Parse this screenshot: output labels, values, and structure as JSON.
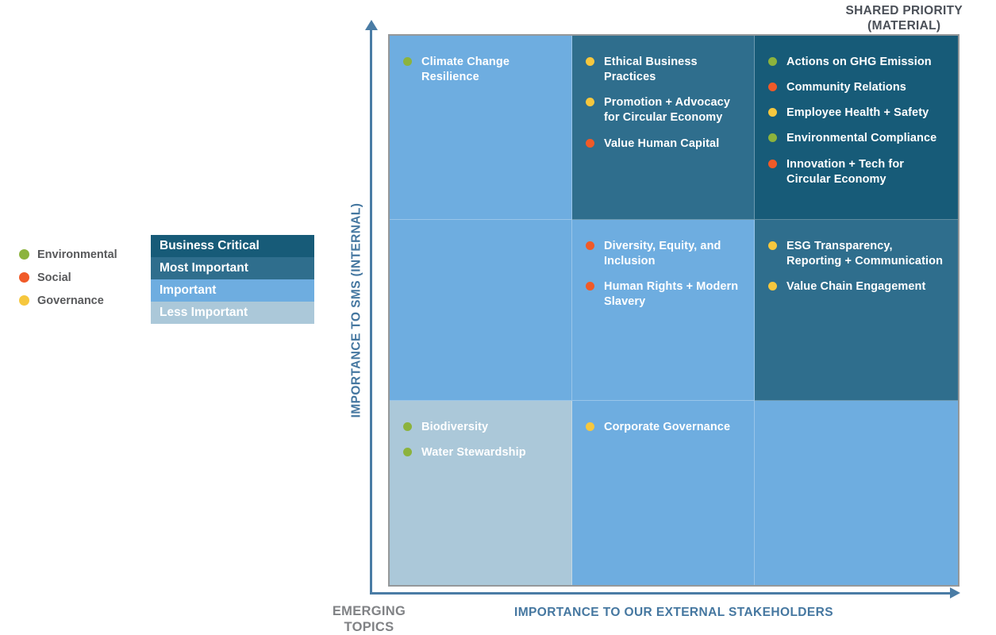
{
  "palette": {
    "axis": "#4A7CA5",
    "axis_text": "#4577A0",
    "shared_priority_text": "#4B5058",
    "emerging_topics_text": "#808285",
    "matrix_border": "#95989A",
    "item_text": "#FFFFFF"
  },
  "corner_labels": {
    "top_right_line1": "SHARED PRIORITY",
    "top_right_line2": "(MATERIAL)",
    "bottom_left_line1": "EMERGING",
    "bottom_left_line2": "TOPICS"
  },
  "axes": {
    "y_label": "IMPORTANCE TO SMS (INTERNAL)",
    "x_label": "IMPORTANCE TO OUR EXTERNAL STAKEHOLDERS"
  },
  "legend": {
    "categories": [
      {
        "label": "Environmental",
        "color": "#8CB33D"
      },
      {
        "label": "Social",
        "color": "#F05A28"
      },
      {
        "label": "Governance",
        "color": "#F6C73E"
      }
    ],
    "priority_levels": [
      {
        "label": "Business Critical",
        "color": "#175B78"
      },
      {
        "label": "Most Important",
        "color": "#2F6E8D"
      },
      {
        "label": "Important",
        "color": "#6EADE0"
      },
      {
        "label": "Less Important",
        "color": "#ABC8D9"
      }
    ]
  },
  "chart_data": {
    "type": "heatmap",
    "title": "Materiality matrix",
    "xlabel": "IMPORTANCE TO OUR EXTERNAL STAKEHOLDERS",
    "ylabel": "IMPORTANCE TO SMS (INTERNAL)",
    "x_categories": [
      "left",
      "center",
      "right"
    ],
    "y_categories": [
      "top",
      "middle",
      "bottom"
    ],
    "legend_entries": [
      "Environmental",
      "Social",
      "Governance"
    ],
    "priority_scale": [
      "Business Critical",
      "Most Important",
      "Important",
      "Less Important"
    ],
    "annotations": [
      "SHARED PRIORITY (MATERIAL)",
      "EMERGING TOPICS"
    ],
    "cells": [
      {
        "row": "top",
        "col": "left",
        "priority": "Important",
        "items": [
          {
            "topic": "Climate Change Resilience",
            "category": "Environmental"
          }
        ]
      },
      {
        "row": "top",
        "col": "center",
        "priority": "Most Important",
        "items": [
          {
            "topic": "Ethical Business Practices",
            "category": "Governance"
          },
          {
            "topic": "Promotion + Advocacy for Circular Economy",
            "category": "Governance"
          },
          {
            "topic": "Value Human Capital",
            "category": "Social"
          }
        ]
      },
      {
        "row": "top",
        "col": "right",
        "priority": "Business Critical",
        "items": [
          {
            "topic": "Actions on GHG Emission",
            "category": "Environmental"
          },
          {
            "topic": "Community Relations",
            "category": "Social"
          },
          {
            "topic": "Employee Health + Safety",
            "category": "Governance"
          },
          {
            "topic": "Environmental Compliance",
            "category": "Environmental"
          },
          {
            "topic": "Innovation + Tech for Circular Economy",
            "category": "Social"
          }
        ]
      },
      {
        "row": "middle",
        "col": "left",
        "priority": "Important",
        "items": []
      },
      {
        "row": "middle",
        "col": "center",
        "priority": "Important",
        "items": [
          {
            "topic": "Diversity, Equity, and Inclusion",
            "category": "Social"
          },
          {
            "topic": "Human Rights + Modern Slavery",
            "category": "Social"
          }
        ]
      },
      {
        "row": "middle",
        "col": "right",
        "priority": "Most Important",
        "items": [
          {
            "topic": "ESG Transparency, Reporting + Communication",
            "category": "Governance"
          },
          {
            "topic": "Value Chain Engagement",
            "category": "Governance"
          }
        ]
      },
      {
        "row": "bottom",
        "col": "left",
        "priority": "Less Important",
        "items": [
          {
            "topic": "Biodiversity",
            "category": "Environmental"
          },
          {
            "topic": "Water Stewardship",
            "category": "Environmental"
          }
        ]
      },
      {
        "row": "bottom",
        "col": "center",
        "priority": "Important",
        "items": [
          {
            "topic": "Corporate Governance",
            "category": "Governance"
          }
        ]
      },
      {
        "row": "bottom",
        "col": "right",
        "priority": "Important",
        "items": []
      }
    ]
  }
}
